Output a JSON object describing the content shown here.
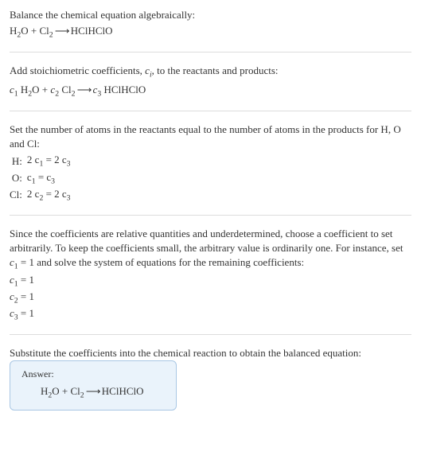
{
  "s1": {
    "intro": "Balance the chemical equation algebraically:",
    "eq_lhs1": "H",
    "eq_lhs1b": "O + Cl",
    "eq_arrow": " ⟶ ",
    "eq_rhs": "HClHClO"
  },
  "s2": {
    "intro": "Add stoichiometric coefficients, ",
    "ci": "c",
    "ci_sub": "i",
    "intro2": ", to the reactants and products:",
    "c1": "c",
    "sub1": "1",
    "sp1": " H",
    "sp1b": "O + ",
    "c2": "c",
    "sub2": "2",
    "sp2": " Cl",
    "arrow": " ⟶ ",
    "c3": "c",
    "sub3": "3",
    "sp3": " HClHClO"
  },
  "s3": {
    "intro": "Set the number of atoms in the reactants equal to the number of atoms in the products for H, O and Cl:",
    "rows": [
      {
        "el": "H:",
        "lhs": "2 c",
        "lsub": "1",
        "eq": " = 2 c",
        "rsub": "3"
      },
      {
        "el": "O:",
        "lhs": "c",
        "lsub": "1",
        "eq": " = c",
        "rsub": "3"
      },
      {
        "el": "Cl:",
        "lhs": "2 c",
        "lsub": "2",
        "eq": " = 2 c",
        "rsub": "3"
      }
    ]
  },
  "s4": {
    "intro1": "Since the coefficients are relative quantities and underdetermined, choose a coefficient to set arbitrarily. To keep the coefficients small, the arbitrary value is ordinarily one. For instance, set ",
    "cset": "c",
    "cset_sub": "1",
    "cset_val": " = 1",
    "intro2": " and solve the system of equations for the remaining coefficients:",
    "sol": [
      {
        "c": "c",
        "s": "1",
        "v": " = 1"
      },
      {
        "c": "c",
        "s": "2",
        "v": " = 1"
      },
      {
        "c": "c",
        "s": "3",
        "v": " = 1"
      }
    ]
  },
  "s5": {
    "intro": "Substitute the coefficients into the chemical reaction to obtain the balanced equation:"
  },
  "answer": {
    "label": "Answer:",
    "lhs1": "H",
    "lhs1b": "O + Cl",
    "arrow": " ⟶ ",
    "rhs": "HClHClO"
  },
  "subs": {
    "two": "2"
  },
  "colors": {
    "answer_bg": "#eaf3fb",
    "answer_border": "#a9c7e4",
    "hr": "#dddddd",
    "text": "#333333"
  }
}
